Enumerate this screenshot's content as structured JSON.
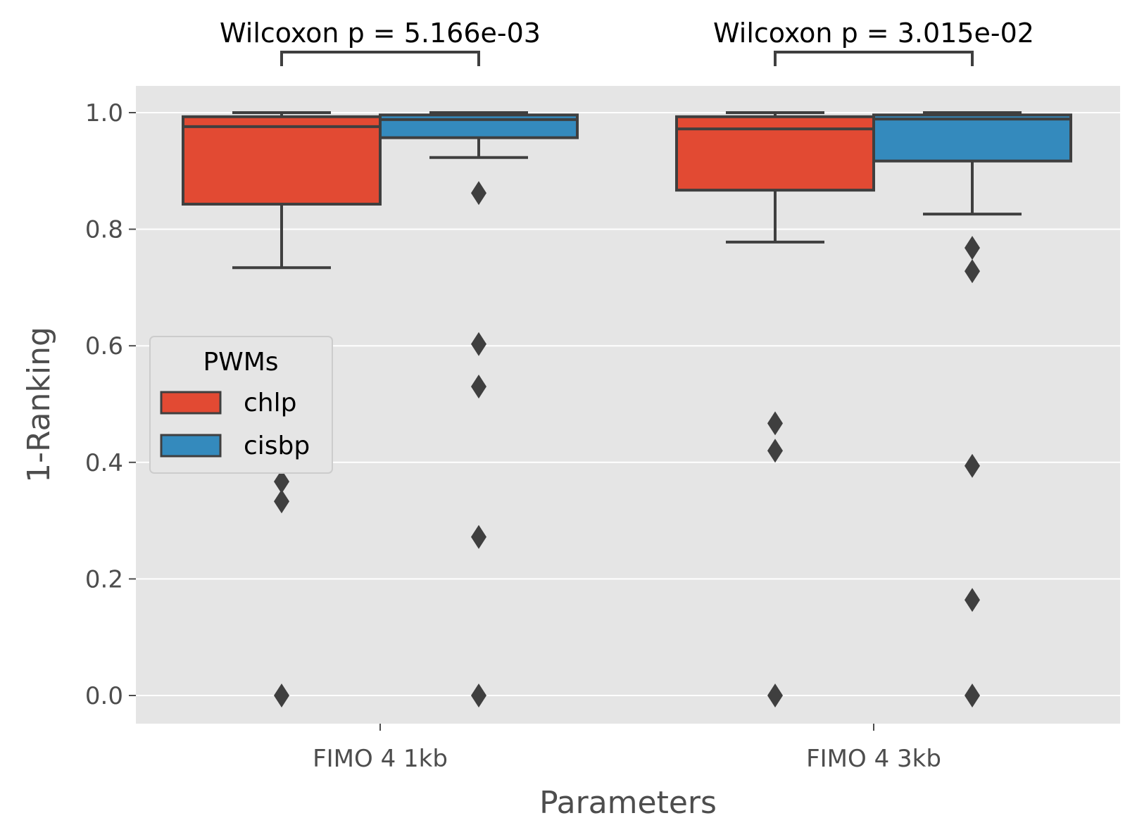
{
  "chart_data": {
    "type": "box",
    "xlabel": "Parameters",
    "ylabel": "1-Ranking",
    "categories": [
      "FIMO 4 1kb",
      "FIMO 4 3kb"
    ],
    "ylim": [
      -0.05,
      1.05
    ],
    "yticks": [
      0.0,
      0.2,
      0.4,
      0.6,
      0.8,
      1.0
    ],
    "ytick_labels": [
      "0.0",
      "0.2",
      "0.4",
      "0.6",
      "0.8",
      "1.0"
    ],
    "grid": true,
    "legend": {
      "title": "PWMs",
      "position": "center-left"
    },
    "series": [
      {
        "name": "chlp",
        "color": "#E24A33",
        "boxes": [
          {
            "category": "FIMO 4 1kb",
            "q1": 0.843,
            "median": 0.976,
            "q3": 0.993,
            "whisker_low": 0.734,
            "whisker_high": 1.0,
            "outliers": [
              0.367,
              0.333,
              0.0
            ]
          },
          {
            "category": "FIMO 4 3kb",
            "q1": 0.867,
            "median": 0.972,
            "q3": 0.993,
            "whisker_low": 0.778,
            "whisker_high": 1.0,
            "outliers": [
              0.467,
              0.42,
              0.0
            ]
          }
        ]
      },
      {
        "name": "cisbp",
        "color": "#348ABD",
        "boxes": [
          {
            "category": "FIMO 4 1kb",
            "q1": 0.957,
            "median": 0.988,
            "q3": 0.996,
            "whisker_low": 0.923,
            "whisker_high": 1.0,
            "outliers": [
              0.862,
              0.603,
              0.53,
              0.272,
              0.0
            ]
          },
          {
            "category": "FIMO 4 3kb",
            "q1": 0.917,
            "median": 0.989,
            "q3": 0.996,
            "whisker_low": 0.826,
            "whisker_high": 1.0,
            "outliers": [
              0.768,
              0.728,
              0.394,
              0.164,
              0.0
            ]
          }
        ]
      }
    ],
    "annotations": [
      {
        "category": "FIMO 4 1kb",
        "text": "Wilcoxon p = 5.166e-03"
      },
      {
        "category": "FIMO 4 3kb",
        "text": "Wilcoxon p = 3.015e-02"
      }
    ]
  }
}
